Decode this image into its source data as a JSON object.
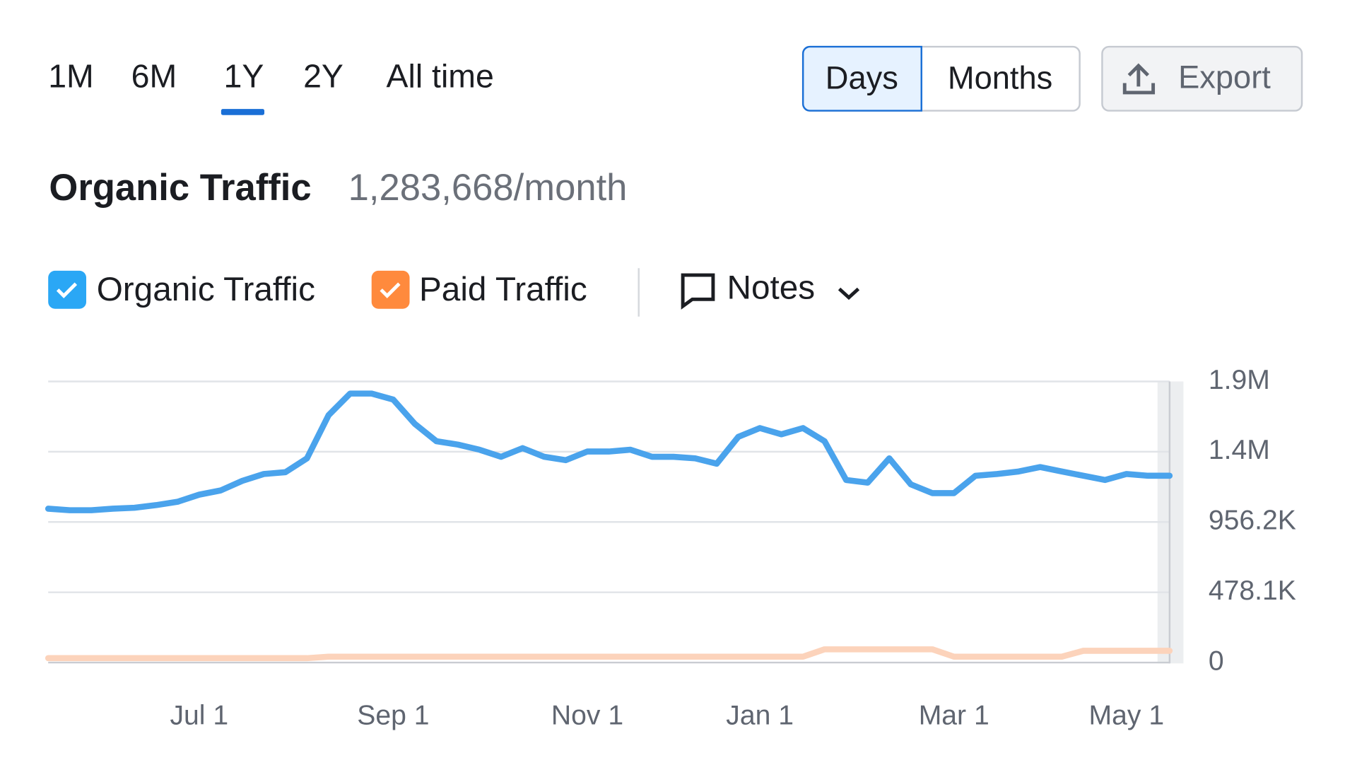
{
  "tabs": [
    "1M",
    "6M",
    "1Y",
    "2Y",
    "All time"
  ],
  "toggle": [
    "Days",
    "Months"
  ],
  "export": "Export",
  "header": {
    "title": "Organic Traffic",
    "value": "1,283,668/month"
  },
  "notes": "Notes",
  "chart_data": {
    "type": "line",
    "categories": [
      null,
      null,
      null,
      null,
      null,
      null,
      null,
      "Jul 1",
      null,
      null,
      null,
      null,
      null,
      null,
      null,
      null,
      "Sep 1",
      null,
      null,
      null,
      null,
      null,
      null,
      null,
      null,
      "Nov 1",
      null,
      null,
      null,
      null,
      null,
      null,
      null,
      "Jan 1",
      null,
      null,
      null,
      null,
      null,
      null,
      null,
      null,
      "Mar 1",
      null,
      null,
      null,
      null,
      null,
      null,
      null,
      "May 1",
      null,
      null
    ],
    "series": [
      {
        "name": "Organic Traffic",
        "color": "#4aa3ec",
        "values": [
          1047000,
          1036000,
          1036000,
          1047000,
          1053000,
          1071000,
          1094000,
          1142000,
          1171000,
          1236000,
          1283000,
          1295000,
          1389000,
          1683000,
          1830000,
          1830000,
          1789000,
          1624000,
          1506000,
          1483000,
          1448000,
          1400000,
          1459000,
          1400000,
          1377000,
          1436000,
          1436000,
          1448000,
          1400000,
          1400000,
          1389000,
          1353000,
          1536000,
          1595000,
          1553000,
          1595000,
          1506000,
          1242000,
          1224000,
          1389000,
          1212000,
          1153000,
          1153000,
          1271000,
          1283000,
          1300000,
          1330000,
          1300000,
          1271000,
          1242000,
          1283000,
          1271000,
          1271000
        ]
      },
      {
        "name": "Paid Traffic",
        "color": "#fcd3bb",
        "values": [
          30000,
          30000,
          30000,
          30000,
          30000,
          30000,
          30000,
          30000,
          30000,
          30000,
          30000,
          30000,
          30000,
          40000,
          40000,
          40000,
          40000,
          40000,
          40000,
          40000,
          40000,
          40000,
          40000,
          40000,
          40000,
          40000,
          40000,
          40000,
          40000,
          40000,
          40000,
          40000,
          40000,
          40000,
          40000,
          40000,
          90000,
          90000,
          90000,
          90000,
          90000,
          90000,
          40000,
          40000,
          40000,
          40000,
          40000,
          40000,
          80000,
          80000,
          80000,
          80000,
          80000
        ]
      }
    ],
    "ylim": [
      0,
      1912400
    ],
    "yticks": [
      0,
      {
        "value": 478100,
        "label": "478.1K"
      },
      {
        "value": 956200,
        "label": "956.2K"
      },
      {
        "value": 1434300,
        "label": "1.4M"
      },
      {
        "value": 1912400,
        "label": "1.9M"
      }
    ],
    "grid": true
  }
}
